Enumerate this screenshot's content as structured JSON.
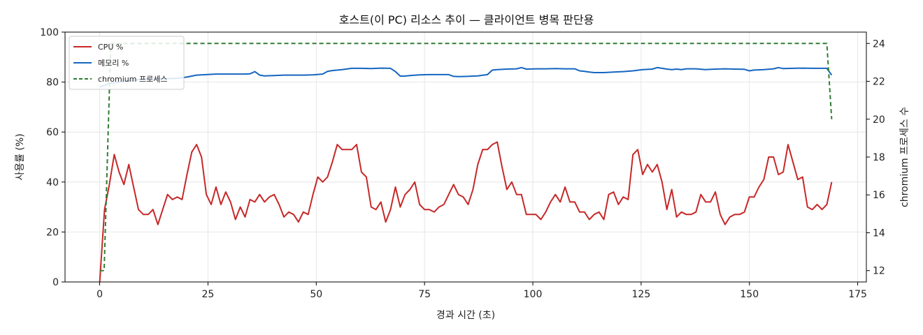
{
  "chart_data": {
    "type": "line",
    "title": "호스트(이 PC) 리소스 추이 — 클라이언트 병목 판단용",
    "xlabel": "경과 시간 (초)",
    "ylabel": "사용률 (%)",
    "y2label": "chromium 프로세스 수",
    "xlim": [
      -8,
      177
    ],
    "ylim": [
      0,
      100
    ],
    "y2lim": [
      11.4,
      24.6
    ],
    "xticks": [
      0,
      25,
      50,
      75,
      100,
      125,
      150,
      175
    ],
    "yticks": [
      0,
      20,
      40,
      60,
      80,
      100
    ],
    "y2ticks": [
      12,
      14,
      16,
      18,
      20,
      22,
      24
    ],
    "grid": true,
    "legend_position": "top-left",
    "series": [
      {
        "name": "CPU %",
        "color": "#c62828",
        "axis": "left",
        "style": "solid",
        "points": [
          [
            0,
            0
          ],
          [
            1,
            29
          ],
          [
            2,
            39
          ],
          [
            3,
            51
          ],
          [
            4,
            44
          ],
          [
            5,
            39
          ],
          [
            6,
            47
          ],
          [
            7,
            38
          ],
          [
            8,
            29
          ],
          [
            9,
            27
          ],
          [
            10,
            27
          ],
          [
            11,
            29
          ],
          [
            12,
            23
          ],
          [
            13,
            29
          ],
          [
            14,
            35
          ],
          [
            15,
            33
          ],
          [
            16,
            34
          ],
          [
            17,
            33
          ],
          [
            18,
            43
          ],
          [
            19,
            52
          ],
          [
            20,
            55
          ],
          [
            21,
            50
          ],
          [
            22,
            35
          ],
          [
            23,
            31
          ],
          [
            24,
            38
          ],
          [
            25,
            31
          ],
          [
            26,
            36
          ],
          [
            27,
            32
          ],
          [
            28,
            25
          ],
          [
            29,
            30
          ],
          [
            30,
            26
          ],
          [
            31,
            33
          ],
          [
            32,
            32
          ],
          [
            33,
            35
          ],
          [
            34,
            32
          ],
          [
            35,
            34
          ],
          [
            36,
            35
          ],
          [
            37,
            31
          ],
          [
            38,
            26
          ],
          [
            39,
            28
          ],
          [
            40,
            27
          ],
          [
            41,
            24
          ],
          [
            42,
            28
          ],
          [
            43,
            27
          ],
          [
            44,
            35
          ],
          [
            45,
            42
          ],
          [
            46,
            40
          ],
          [
            47,
            42
          ],
          [
            48,
            48
          ],
          [
            49,
            55
          ],
          [
            50,
            53
          ],
          [
            51,
            53
          ],
          [
            52,
            53
          ],
          [
            53,
            55
          ],
          [
            54,
            44
          ],
          [
            55,
            42
          ],
          [
            56,
            30
          ],
          [
            57,
            29
          ],
          [
            58,
            32
          ],
          [
            59,
            24
          ],
          [
            60,
            29
          ],
          [
            61,
            38
          ],
          [
            62,
            30
          ],
          [
            63,
            35
          ],
          [
            64,
            37
          ],
          [
            65,
            40
          ],
          [
            66,
            31
          ],
          [
            67,
            29
          ],
          [
            68,
            29
          ],
          [
            69,
            28
          ],
          [
            70,
            30
          ],
          [
            71,
            31
          ],
          [
            72,
            35
          ],
          [
            73,
            39
          ],
          [
            74,
            35
          ],
          [
            75,
            34
          ],
          [
            76,
            31
          ],
          [
            77,
            37
          ],
          [
            78,
            47
          ],
          [
            79,
            53
          ],
          [
            80,
            53
          ],
          [
            81,
            55
          ],
          [
            82,
            56
          ],
          [
            83,
            46
          ],
          [
            84,
            37
          ],
          [
            85,
            40
          ],
          [
            86,
            35
          ],
          [
            87,
            35
          ],
          [
            88,
            27
          ],
          [
            89,
            27
          ],
          [
            90,
            27
          ],
          [
            91,
            25
          ],
          [
            92,
            28
          ],
          [
            93,
            32
          ],
          [
            94,
            35
          ],
          [
            95,
            32
          ],
          [
            96,
            38
          ],
          [
            97,
            32
          ],
          [
            98,
            32
          ],
          [
            99,
            28
          ],
          [
            100,
            28
          ],
          [
            101,
            25
          ],
          [
            102,
            27
          ],
          [
            103,
            28
          ],
          [
            104,
            25
          ],
          [
            105,
            35
          ],
          [
            106,
            36
          ],
          [
            107,
            31
          ],
          [
            108,
            34
          ],
          [
            109,
            33
          ],
          [
            110,
            51
          ],
          [
            111,
            53
          ],
          [
            112,
            43
          ],
          [
            113,
            47
          ],
          [
            114,
            44
          ],
          [
            115,
            47
          ],
          [
            116,
            40
          ],
          [
            117,
            29
          ],
          [
            118,
            37
          ],
          [
            119,
            26
          ],
          [
            120,
            28
          ],
          [
            121,
            27
          ],
          [
            122,
            27
          ],
          [
            123,
            28
          ],
          [
            124,
            35
          ],
          [
            125,
            32
          ],
          [
            126,
            32
          ],
          [
            127,
            36
          ],
          [
            128,
            27
          ],
          [
            129,
            23
          ],
          [
            130,
            26
          ],
          [
            131,
            27
          ],
          [
            132,
            27
          ],
          [
            133,
            28
          ],
          [
            134,
            34
          ],
          [
            135,
            34
          ],
          [
            136,
            38
          ],
          [
            137,
            41
          ],
          [
            138,
            50
          ],
          [
            139,
            50
          ],
          [
            140,
            43
          ],
          [
            141,
            44
          ],
          [
            142,
            55
          ],
          [
            143,
            48
          ],
          [
            144,
            41
          ],
          [
            145,
            42
          ],
          [
            146,
            30
          ],
          [
            147,
            29
          ],
          [
            148,
            31
          ],
          [
            149,
            29
          ],
          [
            150,
            31
          ],
          [
            151,
            40
          ]
        ]
      },
      {
        "name": "메모리 %",
        "color": "#1565c0",
        "axis": "left",
        "style": "solid",
        "points": [
          [
            0,
            78
          ],
          [
            2,
            79.5
          ],
          [
            4,
            80
          ],
          [
            6,
            80.5
          ],
          [
            8,
            81
          ],
          [
            10,
            81.2
          ],
          [
            12,
            81.3
          ],
          [
            14,
            81.4
          ],
          [
            16,
            81.5
          ],
          [
            18,
            82
          ],
          [
            20,
            82.8
          ],
          [
            22,
            83
          ],
          [
            24,
            83.2
          ],
          [
            26,
            83.2
          ],
          [
            28,
            83.2
          ],
          [
            30,
            83.2
          ],
          [
            31,
            83.3
          ],
          [
            32,
            84.2
          ],
          [
            33,
            82.8
          ],
          [
            34,
            82.5
          ],
          [
            36,
            82.6
          ],
          [
            38,
            82.8
          ],
          [
            40,
            82.8
          ],
          [
            42,
            82.8
          ],
          [
            44,
            82.9
          ],
          [
            46,
            83.2
          ],
          [
            47,
            84.3
          ],
          [
            48,
            84.6
          ],
          [
            50,
            85
          ],
          [
            52,
            85.5
          ],
          [
            54,
            85.5
          ],
          [
            56,
            85.4
          ],
          [
            58,
            85.6
          ],
          [
            60,
            85.5
          ],
          [
            61,
            84.2
          ],
          [
            62,
            82.4
          ],
          [
            63,
            82.4
          ],
          [
            64,
            82.6
          ],
          [
            66,
            82.9
          ],
          [
            68,
            83
          ],
          [
            70,
            83
          ],
          [
            72,
            83
          ],
          [
            73,
            82.3
          ],
          [
            74,
            82.2
          ],
          [
            76,
            82.3
          ],
          [
            78,
            82.5
          ],
          [
            80,
            83
          ],
          [
            81,
            84.8
          ],
          [
            82,
            85
          ],
          [
            84,
            85.2
          ],
          [
            86,
            85.3
          ],
          [
            87,
            85.8
          ],
          [
            88,
            85.2
          ],
          [
            90,
            85.3
          ],
          [
            92,
            85.3
          ],
          [
            94,
            85.4
          ],
          [
            96,
            85.3
          ],
          [
            98,
            85.3
          ],
          [
            99,
            84.5
          ],
          [
            100,
            84.3
          ],
          [
            101,
            84
          ],
          [
            102,
            83.8
          ],
          [
            104,
            83.8
          ],
          [
            106,
            84
          ],
          [
            108,
            84.2
          ],
          [
            110,
            84.5
          ],
          [
            112,
            85
          ],
          [
            114,
            85.2
          ],
          [
            115,
            85.8
          ],
          [
            116,
            85.5
          ],
          [
            117,
            85.2
          ],
          [
            118,
            85
          ],
          [
            119,
            85.2
          ],
          [
            120,
            85
          ],
          [
            121,
            85.3
          ],
          [
            123,
            85.3
          ],
          [
            125,
            85
          ],
          [
            127,
            85.2
          ],
          [
            129,
            85.3
          ],
          [
            131,
            85.2
          ],
          [
            133,
            85.1
          ],
          [
            134,
            84.5
          ],
          [
            135,
            84.8
          ],
          [
            137,
            85
          ],
          [
            139,
            85.3
          ],
          [
            140,
            85.8
          ],
          [
            141,
            85.4
          ],
          [
            143,
            85.5
          ],
          [
            145,
            85.6
          ],
          [
            147,
            85.5
          ],
          [
            149,
            85.5
          ],
          [
            150,
            85.5
          ],
          [
            151,
            82.8
          ]
        ]
      },
      {
        "name": "chromium 프로세스",
        "color": "#2e7d32",
        "axis": "right",
        "style": "dashed",
        "points": [
          [
            0,
            12
          ],
          [
            1,
            12
          ],
          [
            2,
            24
          ],
          [
            3,
            24
          ],
          [
            150,
            24
          ],
          [
            151,
            20
          ]
        ]
      }
    ]
  }
}
